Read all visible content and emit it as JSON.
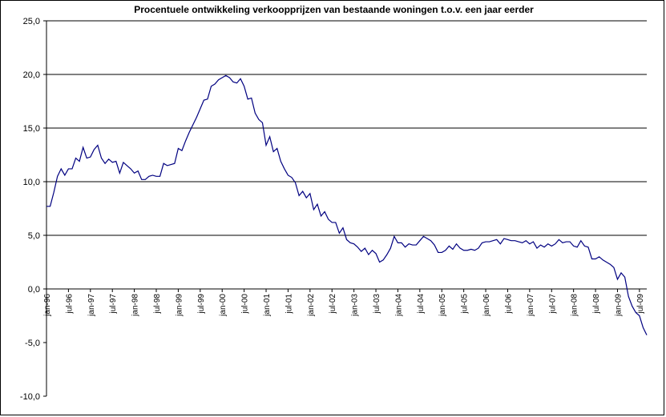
{
  "chart_data": {
    "type": "line",
    "title": "Procentuele ontwikkeling verkoopprijzen van bestaande woningen t.o.v. een jaar eerder",
    "xlabel": "",
    "ylabel": "",
    "ylim": [
      -10,
      25
    ],
    "y_ticks": [
      "25,0",
      "20,0",
      "15,0",
      "10,0",
      "5,0",
      "0,0",
      "-5,0",
      "-10,0"
    ],
    "x_tick_labels": [
      "jan-96",
      "jul-96",
      "jan-97",
      "jul-97",
      "jan-98",
      "jul-98",
      "jan-99",
      "jul-99",
      "jan-00",
      "jul-00",
      "jan-01",
      "jul-01",
      "jan-02",
      "jul-02",
      "jan-03",
      "jul-03",
      "jan-04",
      "jul-04",
      "jan-05",
      "jul-05",
      "jan-06",
      "jul-06",
      "jan-07",
      "jul-07",
      "jan-08",
      "jul-08",
      "jan-09",
      "jul-09"
    ],
    "grid": "horizontal",
    "line_color": "#000080",
    "series": [
      {
        "x_start": "jan-96",
        "frequency": "monthly",
        "values": [
          7.7,
          7.7,
          9.0,
          10.5,
          11.2,
          10.6,
          11.2,
          11.2,
          12.2,
          11.9,
          13.2,
          12.2,
          12.3,
          13.0,
          13.4,
          12.2,
          11.7,
          12.1,
          11.8,
          11.9,
          10.8,
          11.8,
          11.5,
          11.2,
          10.8,
          11.0,
          10.2,
          10.2,
          10.5,
          10.6,
          10.5,
          10.5,
          11.7,
          11.5,
          11.6,
          11.7,
          13.1,
          12.9,
          13.8,
          14.6,
          15.3,
          16.0,
          16.8,
          17.6,
          17.7,
          18.9,
          19.1,
          19.5,
          19.7,
          19.9,
          19.7,
          19.3,
          19.2,
          19.6,
          18.9,
          17.7,
          17.8,
          16.4,
          15.8,
          15.5,
          13.4,
          14.2,
          12.8,
          13.1,
          11.9,
          11.2,
          10.6,
          10.4,
          9.9,
          8.7,
          9.1,
          8.5,
          8.9,
          7.4,
          7.9,
          6.8,
          7.2,
          6.5,
          6.2,
          6.2,
          5.2,
          5.7,
          4.6,
          4.3,
          4.2,
          3.9,
          3.5,
          3.8,
          3.2,
          3.6,
          3.3,
          2.5,
          2.7,
          3.2,
          3.8,
          4.9,
          4.3,
          4.3,
          3.9,
          4.2,
          4.1,
          4.1,
          4.5,
          4.9,
          4.7,
          4.5,
          4.1,
          3.4,
          3.4,
          3.6,
          4.0,
          3.7,
          4.2,
          3.8,
          3.6,
          3.6,
          3.7,
          3.6,
          3.8,
          4.3,
          4.4,
          4.4,
          4.5,
          4.6,
          4.2,
          4.7,
          4.6,
          4.5,
          4.5,
          4.4,
          4.3,
          4.5,
          4.2,
          4.4,
          3.8,
          4.1,
          3.9,
          4.2,
          4.0,
          4.2,
          4.6,
          4.3,
          4.4,
          4.4,
          4.0,
          3.9,
          4.5,
          4.0,
          3.9,
          2.8,
          2.8,
          3.0,
          2.7,
          2.5,
          2.3,
          2.0,
          0.9,
          1.5,
          1.1,
          -0.7,
          -1.6,
          -2.2,
          -2.5,
          -3.6,
          -4.3
        ]
      }
    ]
  }
}
